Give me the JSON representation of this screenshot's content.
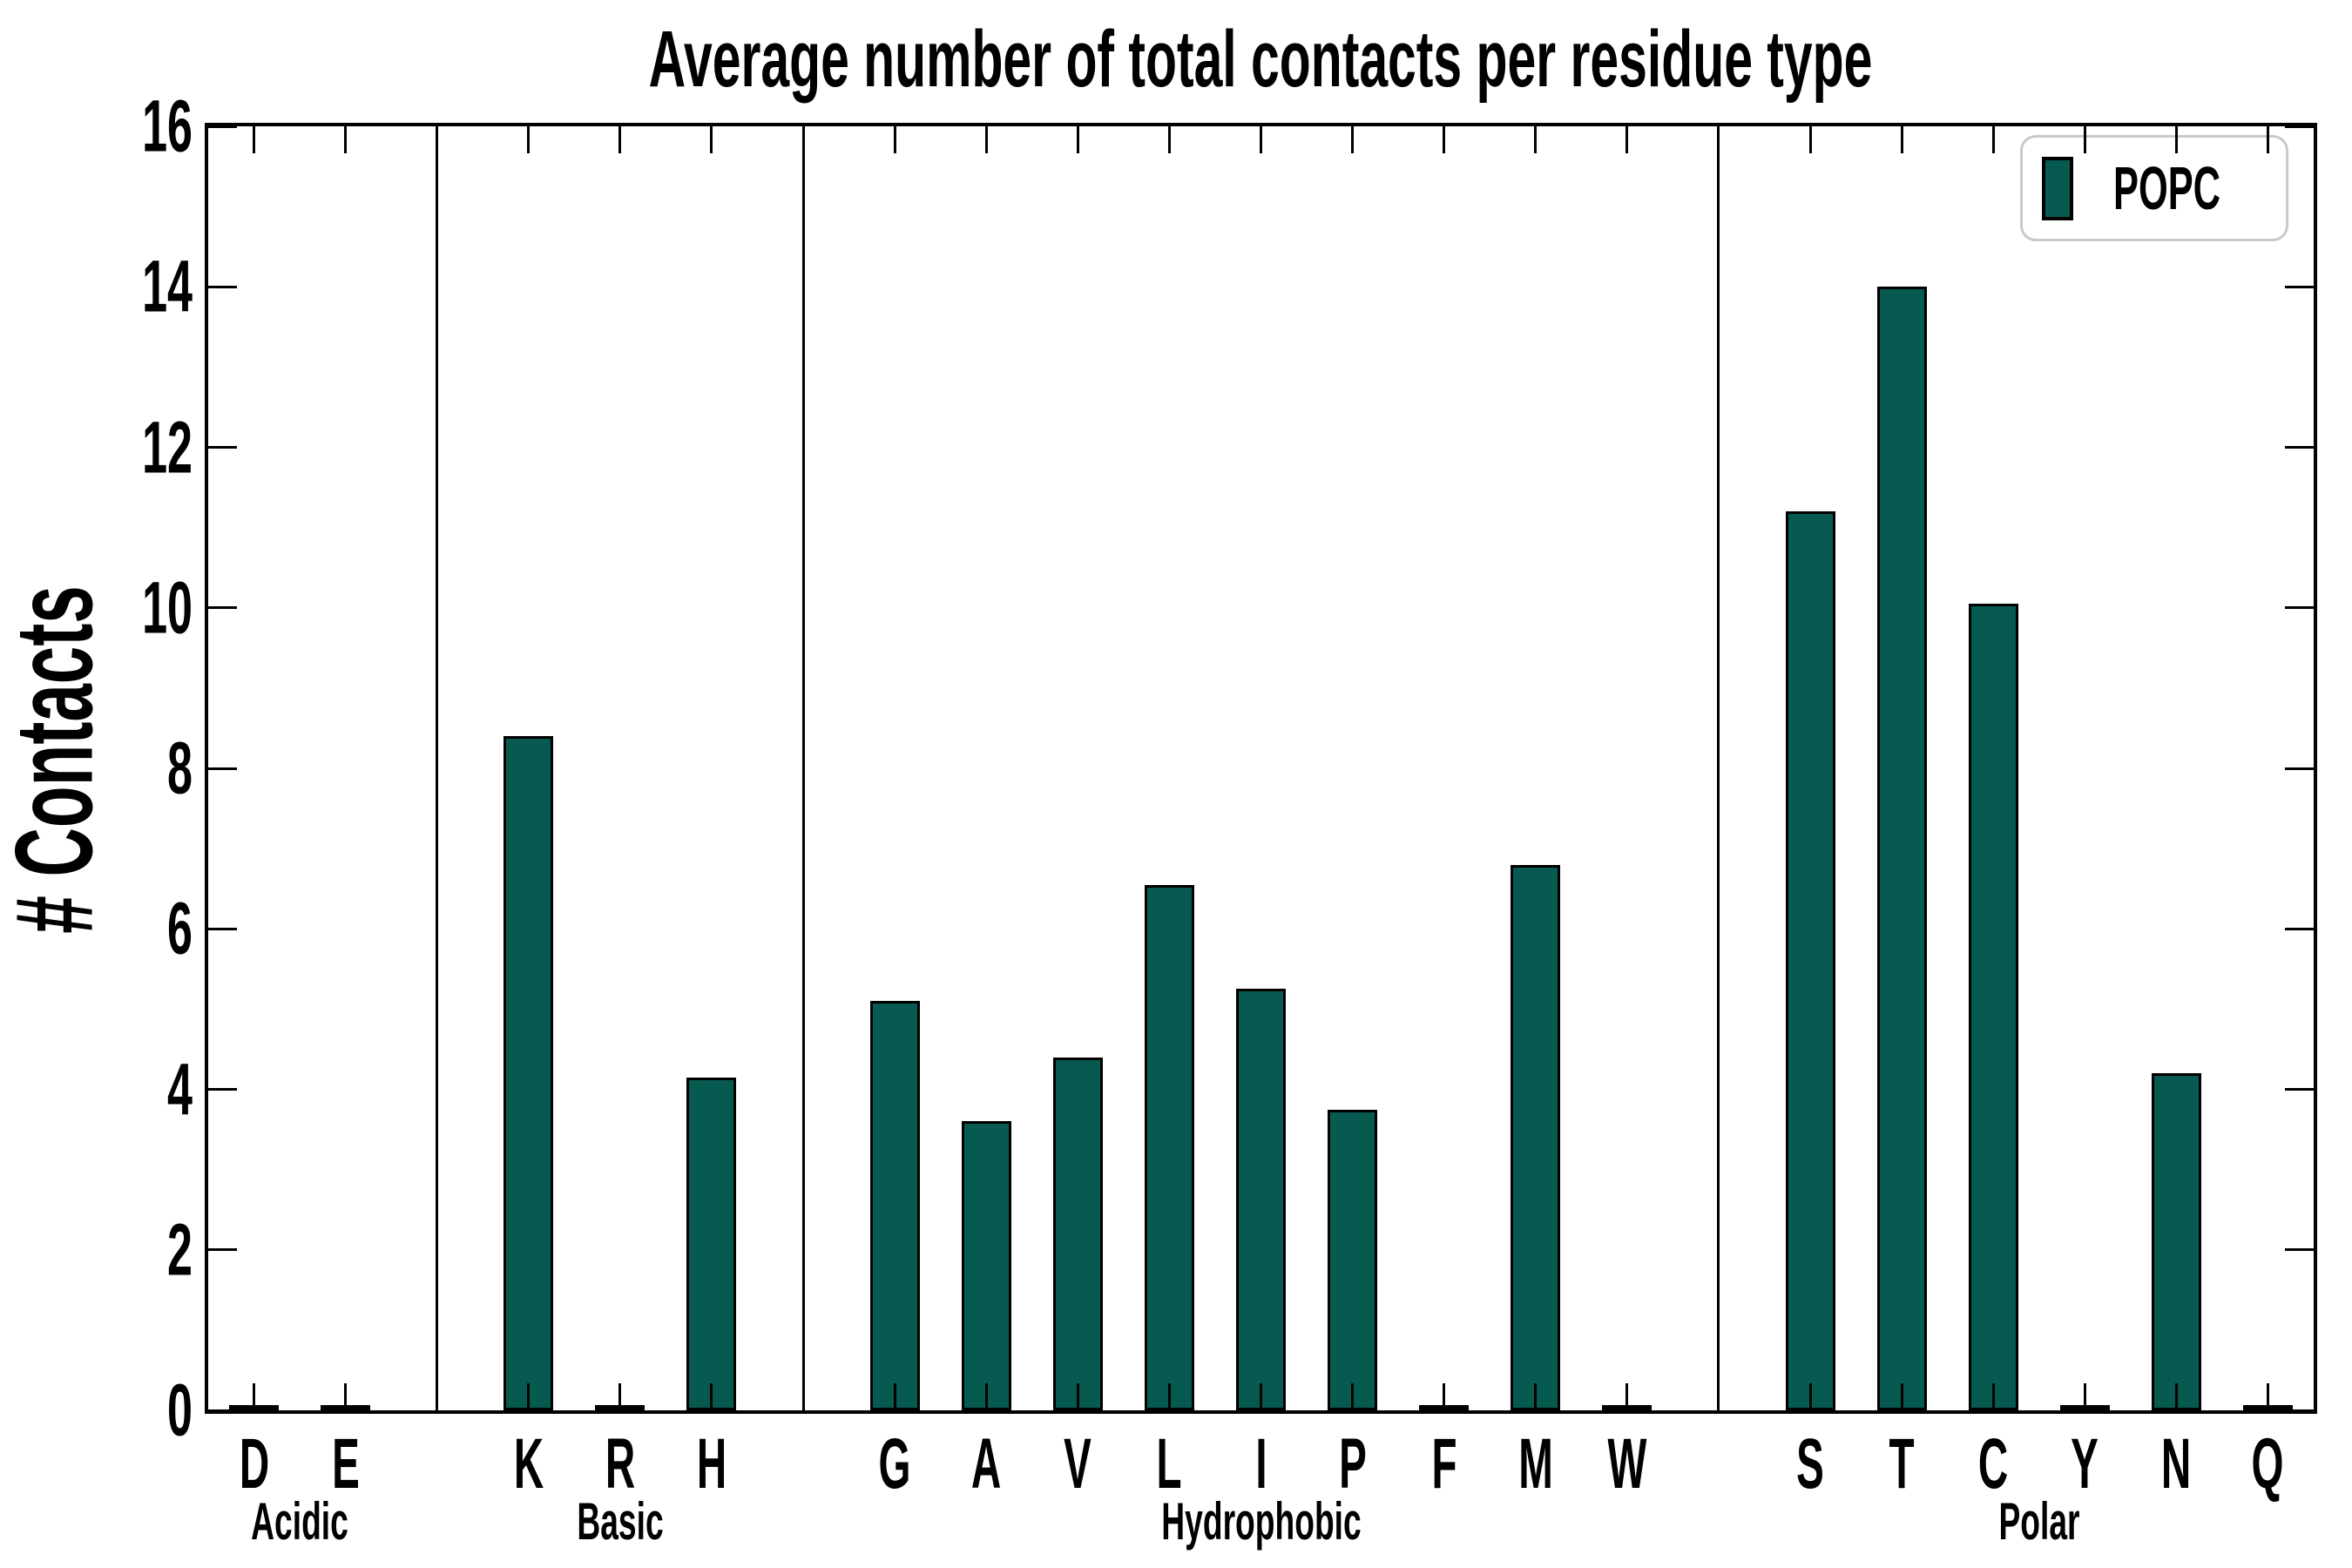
{
  "chart_data": {
    "type": "bar",
    "title": "Average number of total contacts per residue type",
    "xlabel": "",
    "ylabel": "# Contacts",
    "ylim": [
      0,
      16
    ],
    "yticks": [
      0,
      2,
      4,
      6,
      8,
      10,
      12,
      14,
      16
    ],
    "grid": false,
    "legend_position": "upper right",
    "bar_color": "#075a4f",
    "bar_edge_color": "#000000",
    "series": [
      {
        "name": "POPC",
        "groups": [
          {
            "label": "Acidic",
            "categories": [
              "D",
              "E"
            ],
            "values": [
              0.03,
              0.03
            ]
          },
          {
            "label": "Basic",
            "categories": [
              "K",
              "R",
              "H"
            ],
            "values": [
              8.4,
              0.03,
              4.15
            ]
          },
          {
            "label": "Hydrophobic",
            "categories": [
              "G",
              "A",
              "V",
              "L",
              "I",
              "P",
              "F",
              "M",
              "W"
            ],
            "values": [
              5.1,
              3.6,
              4.4,
              6.55,
              5.25,
              3.75,
              0.04,
              6.8,
              0.04
            ]
          },
          {
            "label": "Polar",
            "categories": [
              "S",
              "T",
              "C",
              "Y",
              "N",
              "Q"
            ],
            "values": [
              11.2,
              14.0,
              10.05,
              0.04,
              4.2,
              0.03
            ]
          }
        ]
      }
    ]
  },
  "legend": {
    "label": "POPC",
    "swatch_color": "#075a4f"
  }
}
